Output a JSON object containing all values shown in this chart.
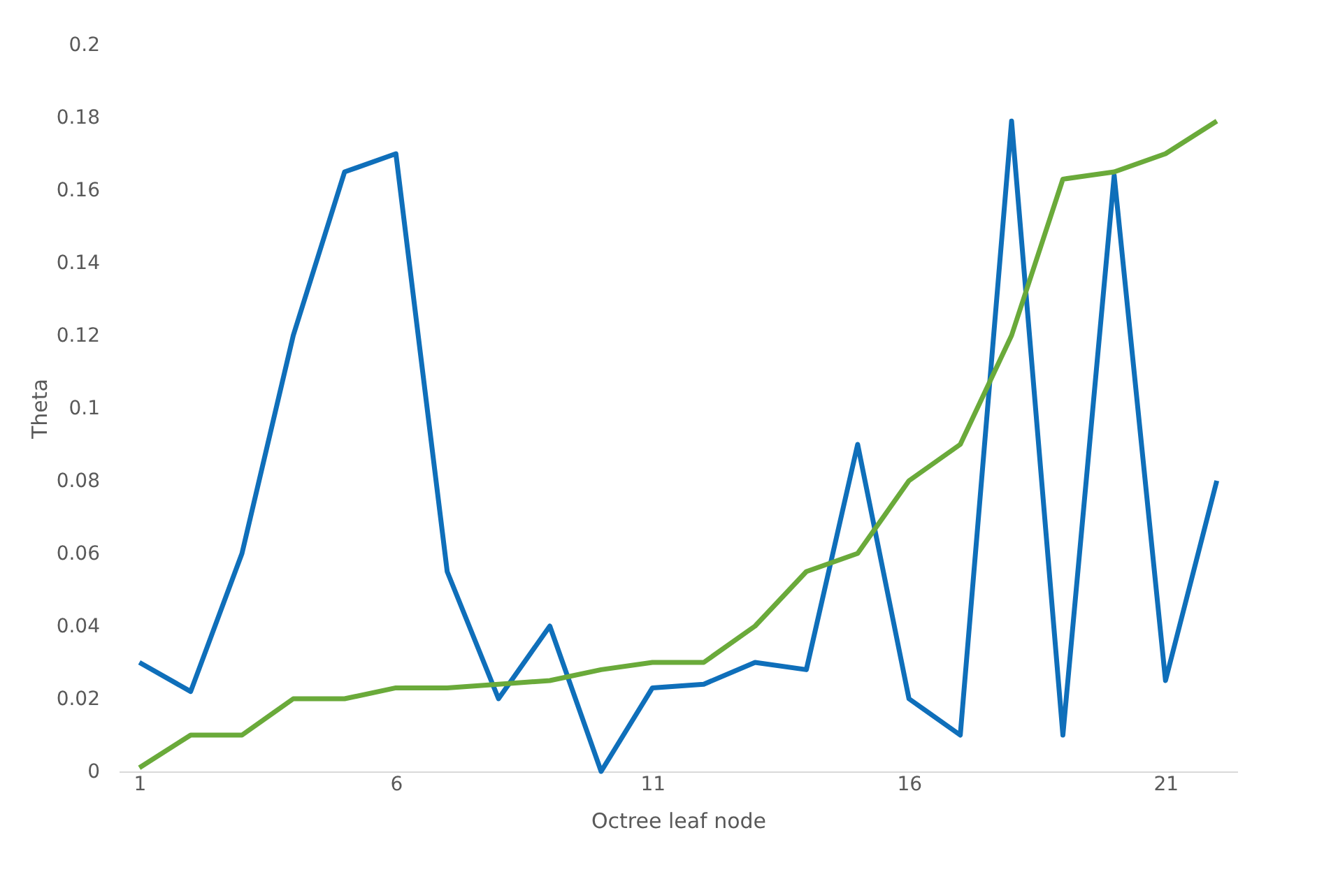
{
  "chart_data": {
    "type": "line",
    "xlabel": "Octree leaf node",
    "ylabel": "Theta",
    "x": [
      1,
      2,
      3,
      4,
      5,
      6,
      7,
      8,
      9,
      10,
      11,
      12,
      13,
      14,
      15,
      16,
      17,
      18,
      19,
      20,
      21,
      22
    ],
    "series": [
      {
        "color": "#0f6fba",
        "values": [
          0.03,
          0.022,
          0.06,
          0.12,
          0.165,
          0.17,
          0.055,
          0.02,
          0.04,
          0.0,
          0.023,
          0.024,
          0.03,
          0.028,
          0.09,
          0.02,
          0.01,
          0.179,
          0.01,
          0.164,
          0.025,
          0.08
        ]
      },
      {
        "color": "#6aaa3a",
        "values": [
          0.001,
          0.01,
          0.01,
          0.02,
          0.02,
          0.023,
          0.023,
          0.024,
          0.025,
          0.028,
          0.03,
          0.03,
          0.04,
          0.055,
          0.06,
          0.08,
          0.09,
          0.12,
          0.163,
          0.165,
          0.17,
          0.179
        ]
      }
    ],
    "xlim": [
      0.6,
      22.4
    ],
    "xticks": [
      1,
      6,
      11,
      16,
      21
    ],
    "ylim": [
      0,
      0.2
    ],
    "yticks": [
      0,
      0.02,
      0.04,
      0.06,
      0.08,
      0.1,
      0.12,
      0.14,
      0.16,
      0.18,
      0.2
    ],
    "grid": false,
    "legend": false,
    "marker": "none",
    "line_style": "solid"
  }
}
